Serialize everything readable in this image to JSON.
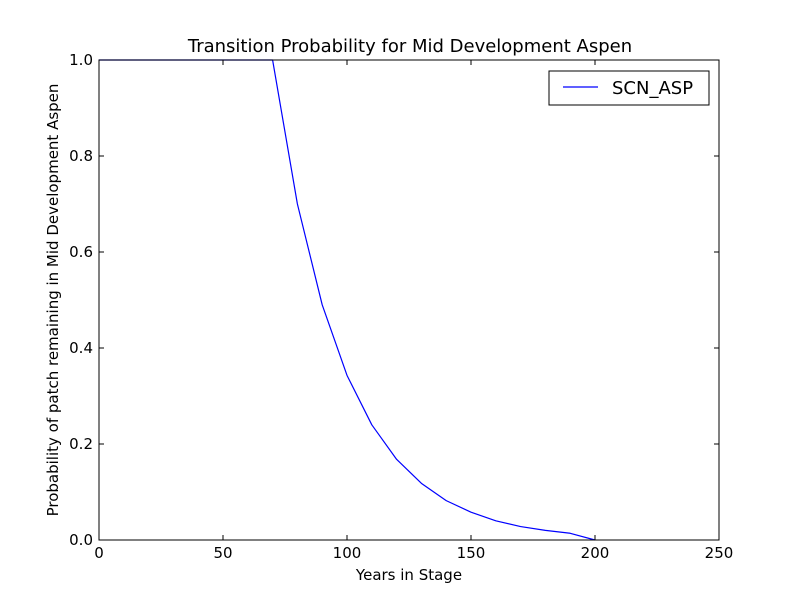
{
  "chart_data": {
    "type": "line",
    "title": "Transition Probability for Mid Development Aspen",
    "xlabel": "Years in Stage",
    "ylabel": "Probability of patch remaining in Mid Development Aspen",
    "xlim": [
      0,
      250
    ],
    "ylim": [
      0.0,
      1.0
    ],
    "xticks": [
      "0",
      "50",
      "100",
      "150",
      "200",
      "250"
    ],
    "yticks": [
      "0.0",
      "0.2",
      "0.4",
      "0.6",
      "0.8",
      "1.0"
    ],
    "grid": false,
    "legend_position": "top-right",
    "series": [
      {
        "name": "SCN_ASP",
        "color": "#0000ff",
        "x": [
          0,
          10,
          20,
          30,
          40,
          50,
          60,
          70,
          80,
          90,
          100,
          110,
          120,
          130,
          140,
          150,
          160,
          170,
          180,
          190,
          200
        ],
        "y": [
          1.0,
          1.0,
          1.0,
          1.0,
          1.0,
          1.0,
          1.0,
          1.0,
          0.7,
          0.49,
          0.343,
          0.24,
          0.168,
          0.118,
          0.082,
          0.058,
          0.04,
          0.028,
          0.02,
          0.014,
          0.0
        ]
      }
    ]
  }
}
